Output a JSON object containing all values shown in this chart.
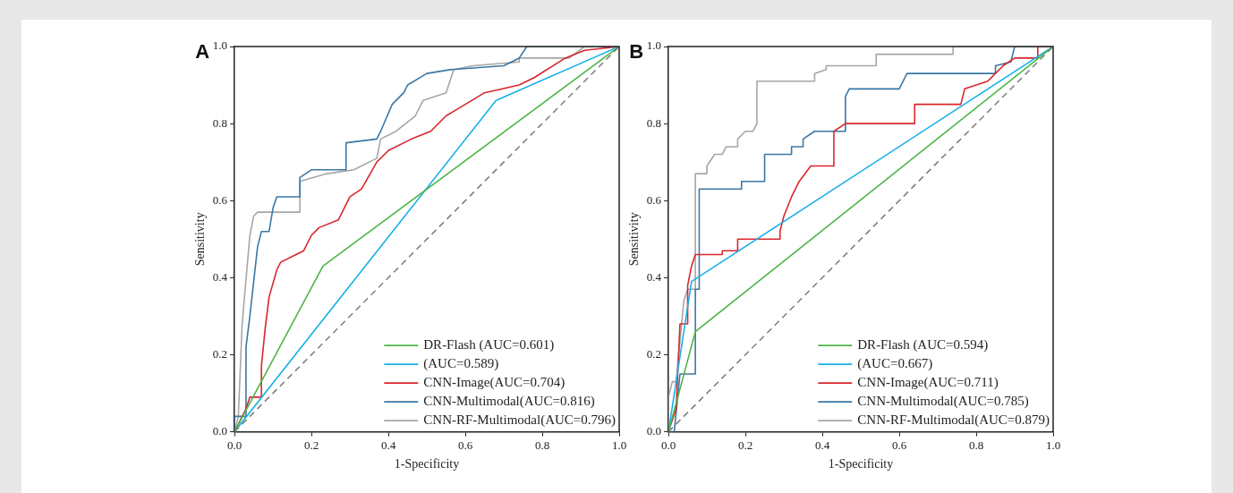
{
  "chart_data": [
    {
      "type": "line",
      "title": "A",
      "xlabel": "1-Specificity",
      "ylabel": "Sensitivity",
      "xlim": [
        0,
        1
      ],
      "ylim": [
        0,
        1
      ],
      "legend": "bottom right",
      "xticks": [
        {
          "value": 0,
          "label": "0.0"
        },
        {
          "value": 0.2,
          "label": "0.2"
        },
        {
          "value": 0.4,
          "label": "0.4"
        },
        {
          "value": 0.6,
          "label": "0.6"
        },
        {
          "value": 0.8,
          "label": "0.8"
        },
        {
          "value": 1,
          "label": "1.0"
        }
      ],
      "yticks": [
        {
          "value": 0,
          "label": "0.0"
        },
        {
          "value": 0.2,
          "label": "0.2"
        },
        {
          "value": 0.4,
          "label": "0.4"
        },
        {
          "value": 0.6,
          "label": "0.6"
        },
        {
          "value": 0.8,
          "label": "0.8"
        },
        {
          "value": 1,
          "label": "1.0"
        }
      ],
      "series": [
        {
          "color": "#808080",
          "line_style": "dashed",
          "x": [
            0,
            1
          ],
          "values": [
            0,
            1
          ]
        },
        {
          "name": "DR-Flash (AUC=0.601)",
          "color": "#4cb548",
          "x": [
            0,
            0.23,
            1
          ],
          "values": [
            0,
            0.43,
            1
          ]
        },
        {
          "name": "(AUC=0.589)",
          "color": "#1ab0e8",
          "x": [
            0,
            0.68,
            1
          ],
          "values": [
            0,
            0.86,
            1
          ]
        },
        {
          "name": "CNN-Image(AUC=0.704)",
          "color": "#d9262c",
          "x": [
            0,
            0.03,
            0.04,
            0.07,
            0.07,
            0.08,
            0.09,
            0.11,
            0.12,
            0.16,
            0.18,
            0.2,
            0.22,
            0.27,
            0.3,
            0.33,
            0.37,
            0.4,
            0.46,
            0.51,
            0.55,
            0.6,
            0.65,
            0.74,
            0.78,
            0.86,
            0.91,
            1
          ],
          "values": [
            0,
            0.06,
            0.09,
            0.09,
            0.17,
            0.27,
            0.35,
            0.42,
            0.44,
            0.46,
            0.47,
            0.51,
            0.53,
            0.55,
            0.61,
            0.63,
            0.7,
            0.73,
            0.76,
            0.78,
            0.82,
            0.85,
            0.88,
            0.9,
            0.92,
            0.97,
            0.99,
            1
          ]
        },
        {
          "name": "CNN-Multimodal(AUC=0.816)",
          "color": "#3a77a5",
          "x": [
            0,
            0,
            0.03,
            0.03,
            0.04,
            0.06,
            0.07,
            0.09,
            0.1,
            0.11,
            0.17,
            0.17,
            0.2,
            0.29,
            0.29,
            0.37,
            0.38,
            0.41,
            0.44,
            0.45,
            0.5,
            0.56,
            0.7,
            0.74,
            0.76,
            1
          ],
          "values": [
            0,
            0.04,
            0.04,
            0.22,
            0.3,
            0.48,
            0.52,
            0.52,
            0.58,
            0.61,
            0.61,
            0.66,
            0.68,
            0.68,
            0.75,
            0.76,
            0.78,
            0.85,
            0.88,
            0.9,
            0.93,
            0.94,
            0.95,
            0.97,
            1,
            1
          ]
        },
        {
          "name": "CNN-RF-Multimodal(AUC=0.796)",
          "color": "#a6a6a6",
          "x": [
            0,
            0.01,
            0.02,
            0.04,
            0.05,
            0.06,
            0.17,
            0.17,
            0.24,
            0.31,
            0.37,
            0.38,
            0.42,
            0.47,
            0.49,
            0.55,
            0.57,
            0.62,
            0.74,
            0.74,
            0.87,
            0.91,
            1
          ],
          "values": [
            0,
            0.04,
            0.28,
            0.51,
            0.56,
            0.57,
            0.57,
            0.65,
            0.67,
            0.68,
            0.71,
            0.76,
            0.78,
            0.82,
            0.86,
            0.88,
            0.94,
            0.95,
            0.96,
            0.97,
            0.97,
            1,
            1
          ]
        }
      ]
    },
    {
      "type": "line",
      "title": "B",
      "xlabel": "1-Specificity",
      "ylabel": "Sensitivity",
      "xlim": [
        0,
        1
      ],
      "ylim": [
        0,
        1
      ],
      "legend": "bottom right",
      "xticks": [
        {
          "value": 0,
          "label": "0.0"
        },
        {
          "value": 0.2,
          "label": "0.2"
        },
        {
          "value": 0.4,
          "label": "0.4"
        },
        {
          "value": 0.6,
          "label": "0.6"
        },
        {
          "value": 0.8,
          "label": "0.8"
        },
        {
          "value": 1,
          "label": "1.0"
        }
      ],
      "yticks": [
        {
          "value": 0,
          "label": "0.0"
        },
        {
          "value": 0.2,
          "label": "0.2"
        },
        {
          "value": 0.4,
          "label": "0.4"
        },
        {
          "value": 0.6,
          "label": "0.6"
        },
        {
          "value": 0.8,
          "label": "0.8"
        },
        {
          "value": 1,
          "label": "1.0"
        }
      ],
      "series": [
        {
          "color": "#808080",
          "line_style": "dashed",
          "x": [
            0,
            1
          ],
          "values": [
            0,
            1
          ]
        },
        {
          "name": "DR-Flash (AUC=0.594)",
          "color": "#4cb548",
          "x": [
            0,
            0.07,
            1
          ],
          "values": [
            0,
            0.26,
            1
          ]
        },
        {
          "name": "(AUC=0.667)",
          "color": "#1ab0e8",
          "x": [
            0,
            0.06,
            1
          ],
          "values": [
            0,
            0.39,
            1
          ]
        },
        {
          "name": "CNN-Image(AUC=0.711)",
          "color": "#d9262c",
          "x": [
            0,
            0.02,
            0.03,
            0.05,
            0.05,
            0.06,
            0.07,
            0.14,
            0.14,
            0.18,
            0.18,
            0.29,
            0.29,
            0.3,
            0.32,
            0.34,
            0.37,
            0.43,
            0.43,
            0.46,
            0.64,
            0.64,
            0.76,
            0.77,
            0.83,
            0.85,
            0.87,
            0.9,
            0.96,
            0.96,
            1
          ],
          "values": [
            0,
            0.06,
            0.28,
            0.28,
            0.38,
            0.43,
            0.46,
            0.46,
            0.47,
            0.47,
            0.5,
            0.5,
            0.52,
            0.56,
            0.61,
            0.65,
            0.69,
            0.69,
            0.78,
            0.8,
            0.8,
            0.85,
            0.85,
            0.89,
            0.91,
            0.93,
            0.95,
            0.97,
            0.97,
            1,
            1
          ]
        },
        {
          "name": "CNN-Multimodal(AUC=0.785)",
          "color": "#3a77a5",
          "x": [
            0,
            0.015,
            0.03,
            0.07,
            0.07,
            0.08,
            0.08,
            0.19,
            0.19,
            0.25,
            0.25,
            0.32,
            0.32,
            0.35,
            0.35,
            0.38,
            0.46,
            0.46,
            0.47,
            0.6,
            0.62,
            0.85,
            0.85,
            0.89,
            0.9,
            1
          ],
          "values": [
            0,
            0,
            0.15,
            0.15,
            0.37,
            0.37,
            0.63,
            0.63,
            0.65,
            0.65,
            0.72,
            0.72,
            0.74,
            0.74,
            0.76,
            0.78,
            0.78,
            0.87,
            0.89,
            0.89,
            0.93,
            0.93,
            0.95,
            0.96,
            1,
            1
          ]
        },
        {
          "name": "CNN-RF-Multimodal(AUC=0.879)",
          "color": "#a6a6a6",
          "x": [
            0,
            0,
            0.01,
            0.02,
            0.04,
            0.05,
            0.07,
            0.07,
            0.1,
            0.1,
            0.12,
            0.14,
            0.15,
            0.18,
            0.18,
            0.2,
            0.22,
            0.23,
            0.23,
            0.38,
            0.38,
            0.41,
            0.41,
            0.54,
            0.54,
            0.74,
            0.74,
            1
          ],
          "values": [
            0,
            0.09,
            0.13,
            0.13,
            0.34,
            0.37,
            0.37,
            0.67,
            0.67,
            0.69,
            0.72,
            0.72,
            0.74,
            0.74,
            0.76,
            0.78,
            0.78,
            0.8,
            0.91,
            0.91,
            0.93,
            0.94,
            0.95,
            0.95,
            0.98,
            0.98,
            1,
            1
          ]
        }
      ]
    }
  ]
}
